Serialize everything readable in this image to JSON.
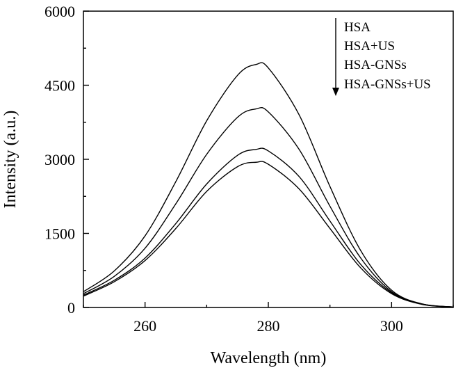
{
  "chart_data": {
    "type": "line",
    "title": "",
    "xlabel": "Wavelength (nm)",
    "ylabel": "Intensity (a.u.)",
    "xlim": [
      250,
      310
    ],
    "ylim": [
      0,
      6000
    ],
    "x_ticks": [
      260,
      280,
      300
    ],
    "y_ticks": [
      0,
      1500,
      3000,
      4500,
      6000
    ],
    "x": [
      250,
      255,
      260,
      265,
      270,
      275,
      278,
      280,
      285,
      290,
      295,
      300,
      305,
      310
    ],
    "series": [
      {
        "name": "HSA",
        "values": [
          320,
          740,
          1450,
          2550,
          3780,
          4700,
          4920,
          4850,
          3900,
          2450,
          1150,
          350,
          70,
          10
        ]
      },
      {
        "name": "HSA+US",
        "values": [
          280,
          630,
          1200,
          2100,
          3100,
          3850,
          4020,
          3960,
          3200,
          2050,
          1000,
          320,
          70,
          10
        ]
      },
      {
        "name": "HSA-GNSs",
        "values": [
          250,
          550,
          1000,
          1700,
          2500,
          3080,
          3200,
          3170,
          2650,
          1750,
          870,
          300,
          70,
          10
        ]
      },
      {
        "name": "HSA-GNSs+US",
        "values": [
          230,
          520,
          950,
          1600,
          2350,
          2850,
          2940,
          2900,
          2400,
          1600,
          800,
          280,
          60,
          10
        ]
      }
    ],
    "legend": {
      "position": "top-right",
      "entries": [
        "HSA",
        "HSA+US",
        "HSA-GNSs",
        "HSA-GNSs+US"
      ],
      "arrow": "down"
    },
    "colors": {
      "line": "#000000",
      "axis": "#000000",
      "background": "#ffffff"
    }
  }
}
